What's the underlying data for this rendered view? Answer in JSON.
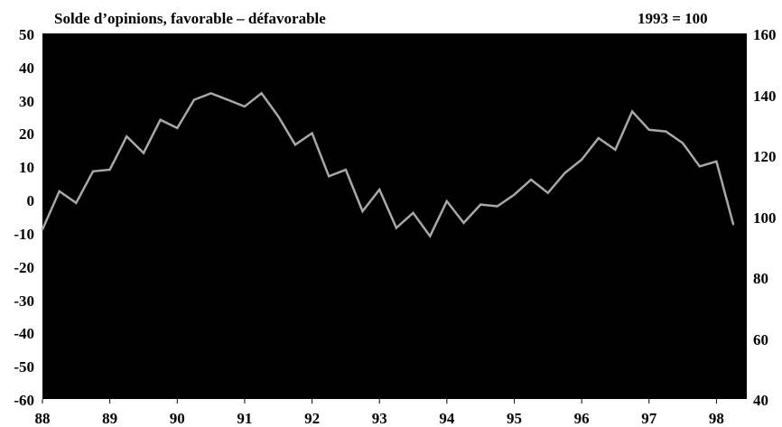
{
  "chart_data": {
    "type": "line",
    "title": "Solde d’opinions, favorable – défavorable",
    "note": "1993 = 100",
    "background": "#000000",
    "line_color": "#a8a8a8",
    "ylim_left": [
      -60,
      50
    ],
    "ylim_right": [
      40,
      160
    ],
    "xlim": [
      88,
      98.45
    ],
    "y_ticks_left": [
      "50",
      "40",
      "30",
      "20",
      "10",
      "0",
      "-10",
      "-20",
      "-30",
      "-40",
      "-50",
      "-60"
    ],
    "y_ticks_right": [
      "160",
      "140",
      "120",
      "100",
      "80",
      "60",
      "40"
    ],
    "x_ticks": [
      "88",
      "89",
      "90",
      "91",
      "92",
      "93",
      "94",
      "95",
      "96",
      "97",
      "98"
    ],
    "grid": false,
    "series": [
      {
        "axis": "left",
        "x": [
          88.0,
          88.25,
          88.5,
          88.75,
          89.0,
          89.25,
          89.5,
          89.75,
          90.0,
          90.25,
          90.5,
          90.75,
          91.0,
          91.25,
          91.5,
          91.75,
          92.0,
          92.25,
          92.5,
          92.75,
          93.0,
          93.25,
          93.5,
          93.75,
          94.0,
          94.25,
          94.5,
          94.75,
          95.0,
          95.25,
          95.5,
          95.75,
          96.0,
          96.25,
          96.5,
          96.75,
          97.0,
          97.25,
          97.5,
          97.75,
          98.0,
          98.25
        ],
        "values": [
          -9,
          2.5,
          -1,
          8.5,
          9,
          19,
          14,
          24,
          21.5,
          30,
          32,
          30,
          28,
          32,
          25,
          16.5,
          20,
          7,
          9,
          -3.5,
          3,
          -8.5,
          -4,
          -11,
          -0.5,
          -7,
          -1.5,
          -2,
          1.5,
          6,
          2,
          8,
          12,
          18.5,
          15,
          26.5,
          21,
          20.5,
          17,
          10,
          11.5,
          -7.5
        ]
      }
    ]
  }
}
